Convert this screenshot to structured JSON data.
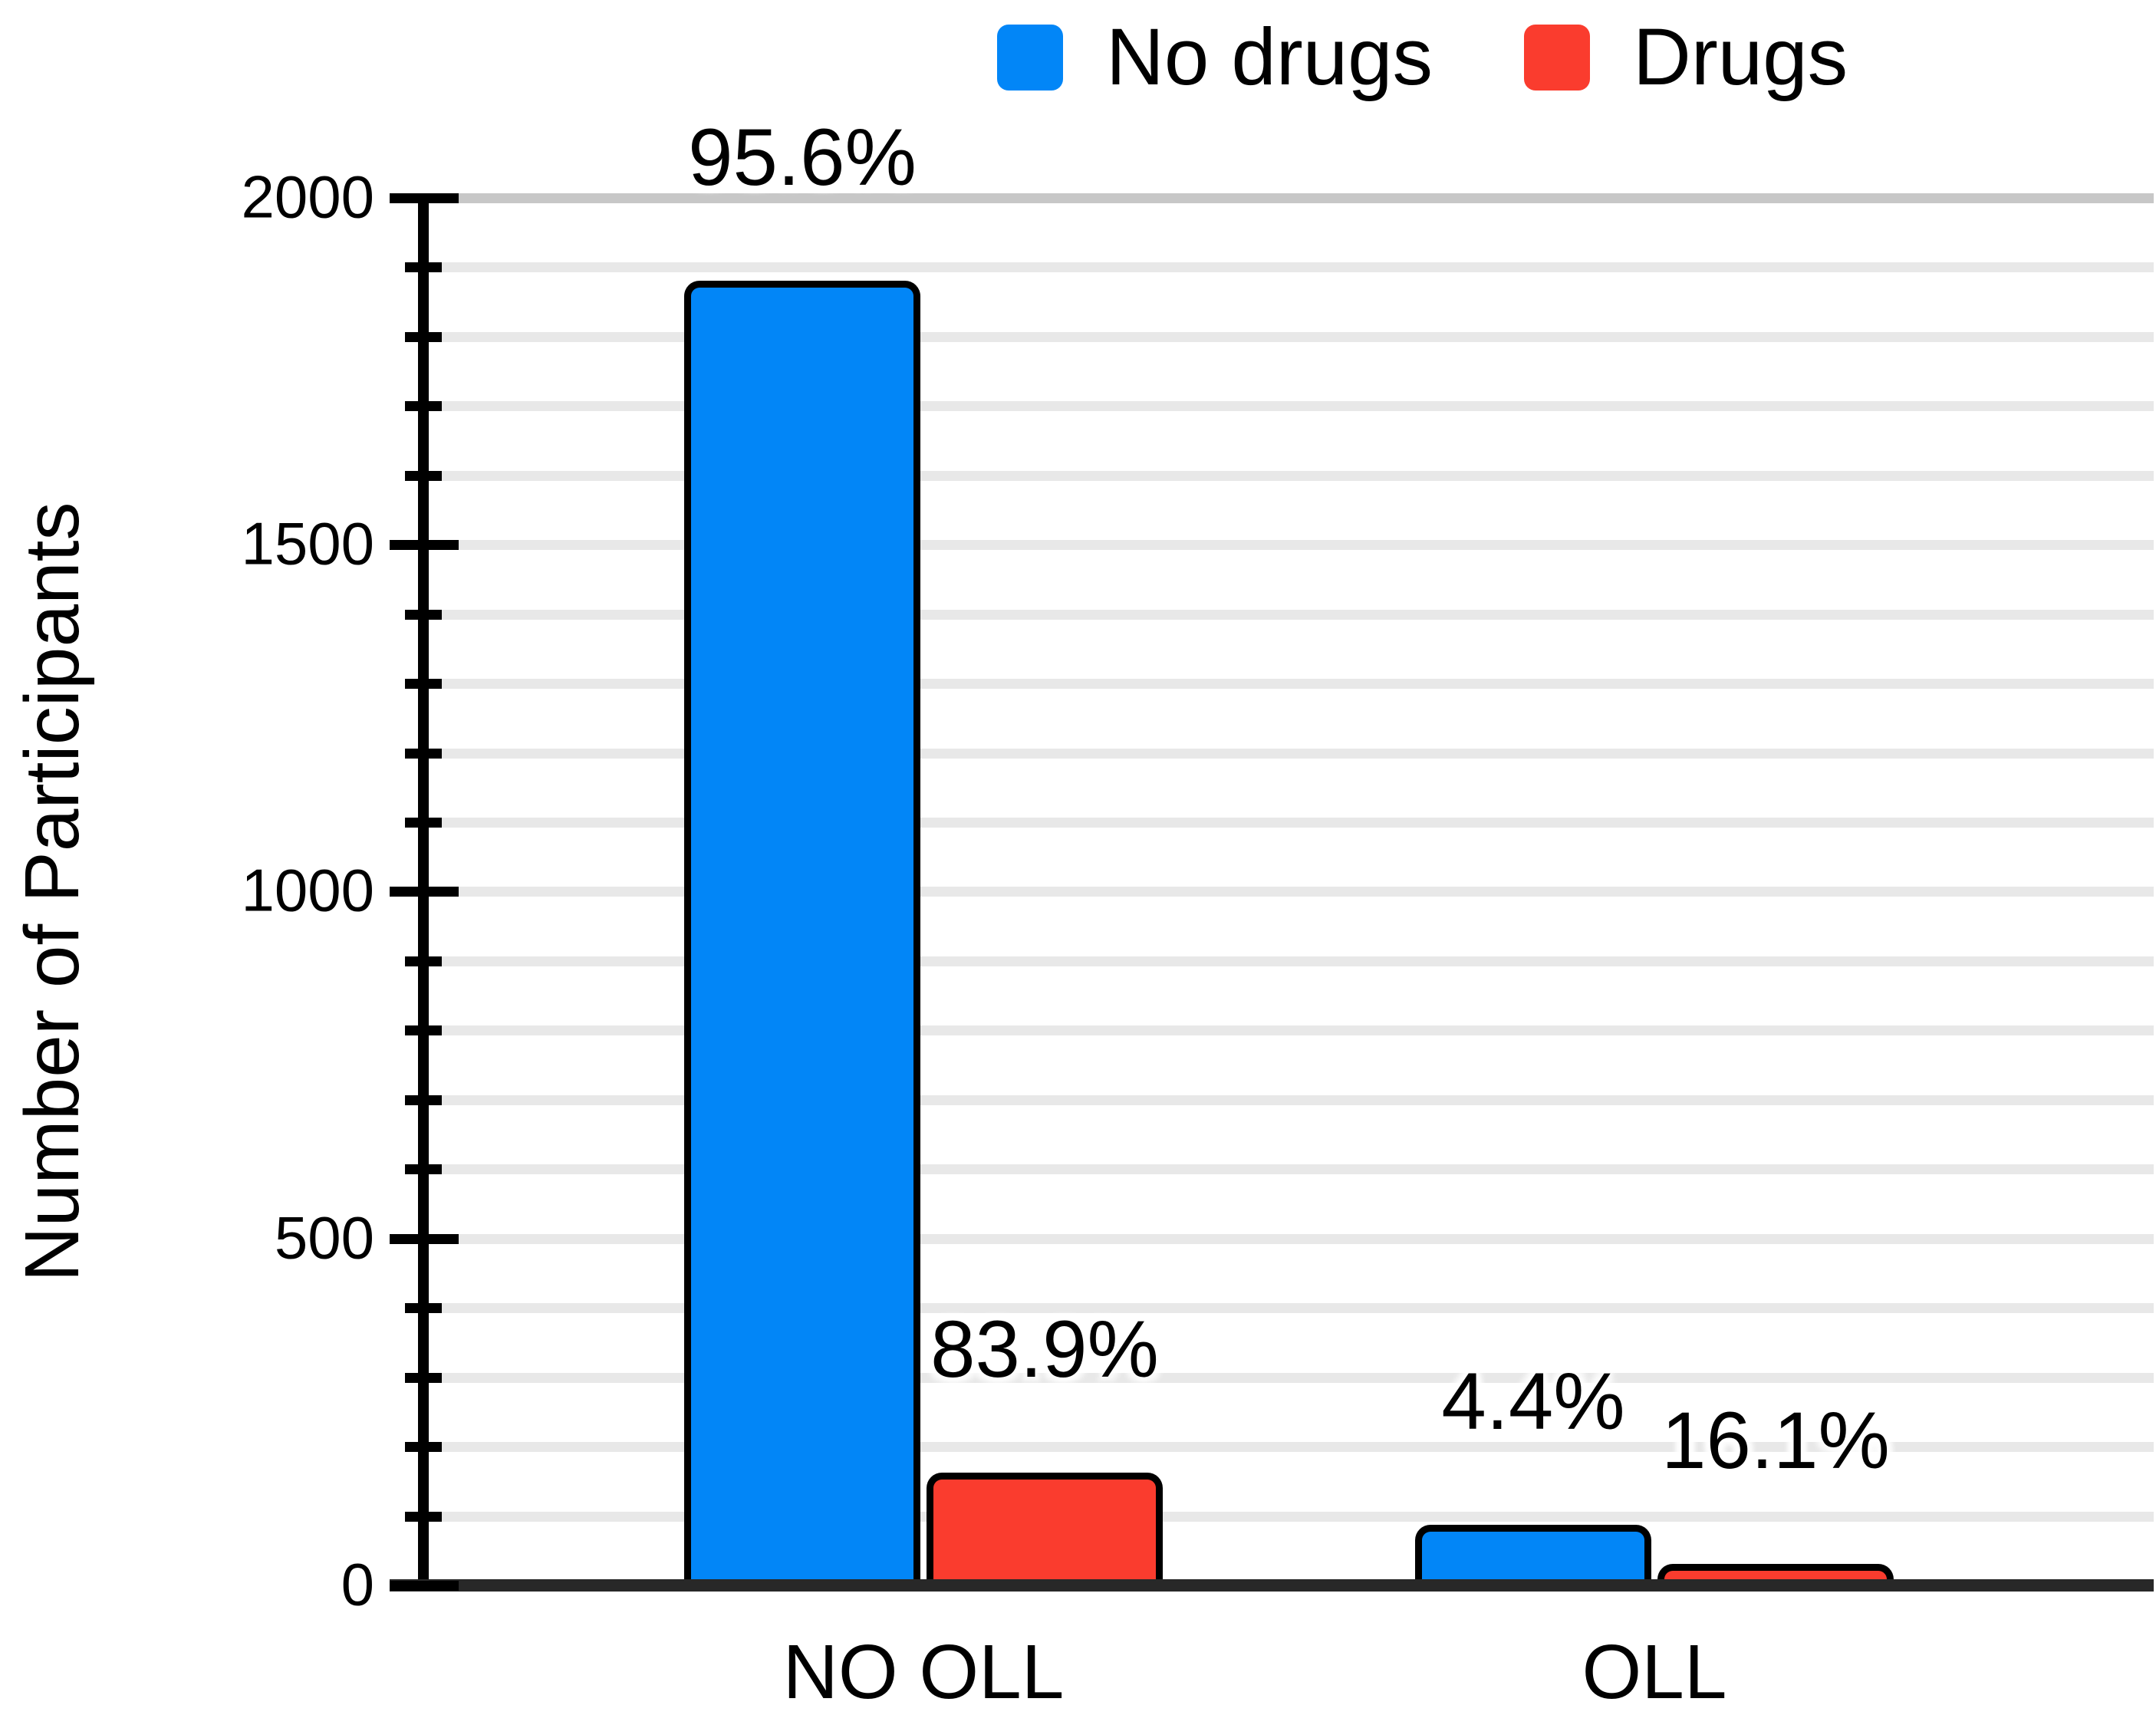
{
  "chart_data": {
    "type": "bar",
    "title": "",
    "ylabel": "Number of Participants",
    "xlabel": "",
    "categories": [
      "NO OLL",
      "OLL"
    ],
    "series": [
      {
        "name": "No drugs",
        "color": "#0286F7",
        "values": [
          1880,
          87
        ],
        "percent_labels": [
          "95.6%",
          "4.4%"
        ]
      },
      {
        "name": "Drugs",
        "color": "#FA3C2E",
        "values": [
          162,
          31
        ],
        "percent_labels": [
          "83.9%",
          "16.1%"
        ]
      }
    ],
    "ylim": [
      0,
      2000
    ],
    "y_major_ticks": [
      0,
      500,
      1000,
      1500,
      2000
    ],
    "y_minor_step": 100,
    "grid": "horizontal, every 100, light gray; top line darker",
    "legend_position": "top-center"
  }
}
